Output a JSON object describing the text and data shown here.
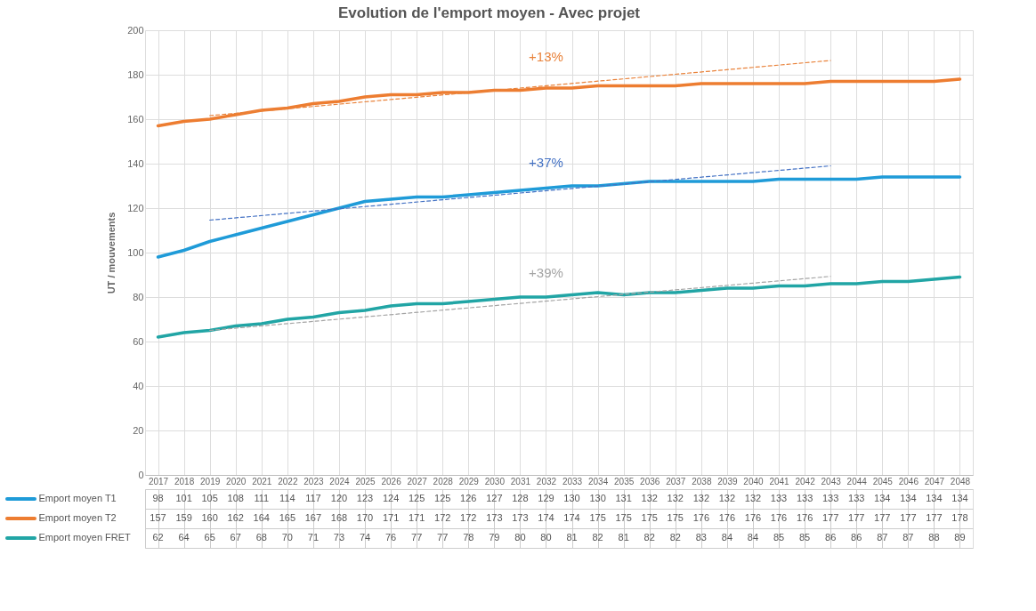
{
  "chart_data": {
    "type": "line",
    "title": "Evolution de l'emport moyen - Avec projet",
    "ylabel": "UT / mouvements",
    "categories": [
      "2017",
      "2018",
      "2019",
      "2020",
      "2021",
      "2022",
      "2023",
      "2024",
      "2025",
      "2026",
      "2027",
      "2028",
      "2029",
      "2030",
      "2031",
      "2032",
      "2033",
      "2034",
      "2035",
      "2036",
      "2037",
      "2038",
      "2039",
      "2040",
      "2041",
      "2042",
      "2043",
      "2044",
      "2045",
      "2046",
      "2047",
      "2048"
    ],
    "series": [
      {
        "name": "Emport moyen T1",
        "color": "#1f9bd8",
        "values": [
          98,
          101,
          105,
          108,
          111,
          114,
          117,
          120,
          123,
          124,
          125,
          125,
          126,
          127,
          128,
          129,
          130,
          130,
          131,
          132,
          132,
          132,
          132,
          132,
          133,
          133,
          133,
          133,
          134,
          134,
          134,
          134
        ],
        "value_labels": [
          "98",
          "101",
          "105",
          "108",
          "111",
          "114",
          "117",
          "120",
          "123",
          "124",
          "125",
          "125",
          "126",
          "127",
          "128",
          "129",
          "130",
          "130",
          "131",
          "132",
          "132",
          "132",
          "132",
          "132",
          "133",
          "133",
          "133",
          "133",
          "134",
          "134",
          "134",
          "134"
        ]
      },
      {
        "name": "Emport moyen T2",
        "color": "#ed7d31",
        "values": [
          157,
          159,
          160,
          162,
          164,
          165,
          167,
          168,
          170,
          171,
          171,
          172,
          172,
          173,
          173,
          174,
          174,
          175,
          175,
          175,
          175,
          176,
          176,
          176,
          176,
          176,
          177,
          177,
          177,
          177,
          177,
          178
        ],
        "value_labels": [
          "157",
          "159",
          "160",
          "162",
          "164",
          "165",
          "167",
          "168",
          "170",
          "171",
          "171",
          "172",
          "172",
          "173",
          "173",
          "174",
          "174",
          "175",
          "175",
          "175",
          "175",
          "176",
          "176",
          "176",
          "176",
          "176",
          "177",
          "177",
          "177",
          "177",
          "177",
          "178"
        ]
      },
      {
        "name": "Emport moyen FRET",
        "color": "#21a5a5",
        "values": [
          62,
          64,
          65,
          67,
          68,
          70,
          71,
          73,
          74,
          76,
          77,
          77,
          78,
          79,
          80,
          80,
          81,
          82,
          81,
          82,
          82,
          83,
          84,
          84,
          85,
          85,
          86,
          86,
          87,
          87,
          88,
          89
        ],
        "value_labels": [
          "62",
          "64",
          "65",
          "67",
          "68",
          "70",
          "71",
          "73",
          "74",
          "76",
          "77",
          "77",
          "78",
          "79",
          "80",
          "80",
          "81",
          "82",
          "81",
          "82",
          "82",
          "83",
          "84",
          "84",
          "85",
          "85",
          "86",
          "86",
          "87",
          "87",
          "88",
          "89"
        ]
      },
      {
        "type": "line",
        "color": "#e9823a",
        "line_style": "dashed",
        "values": [
          null,
          null,
          161.6,
          null,
          null,
          null,
          null,
          null,
          null,
          null,
          null,
          null,
          null,
          null,
          null,
          null,
          null,
          null,
          null,
          null,
          null,
          null,
          null,
          null,
          null,
          null,
          186.4,
          null,
          null,
          null,
          null,
          null
        ]
      },
      {
        "type": "line",
        "color": "#4472c4",
        "line_style": "dashed",
        "values": [
          null,
          null,
          114.6,
          null,
          null,
          null,
          null,
          null,
          null,
          null,
          null,
          null,
          null,
          null,
          null,
          null,
          null,
          null,
          null,
          null,
          null,
          null,
          null,
          null,
          null,
          null,
          139,
          null,
          null,
          null,
          null,
          null
        ]
      },
      {
        "type": "line",
        "color": "#a5a5a5",
        "line_style": "dashed",
        "values": [
          null,
          null,
          65,
          null,
          null,
          null,
          null,
          null,
          null,
          null,
          null,
          null,
          null,
          null,
          null,
          null,
          null,
          null,
          null,
          null,
          null,
          null,
          null,
          null,
          null,
          null,
          89.3,
          null,
          null,
          null,
          null,
          null
        ]
      }
    ],
    "annotations": [
      "+13%",
      "+37%",
      "+39%"
    ],
    "ylim": [
      0,
      200
    ],
    "yticks": [
      0,
      20,
      40,
      60,
      80,
      100,
      120,
      140,
      160,
      180,
      200
    ],
    "grid": true,
    "legend": "bottom",
    "marker": "none",
    "line_style": "solid"
  }
}
